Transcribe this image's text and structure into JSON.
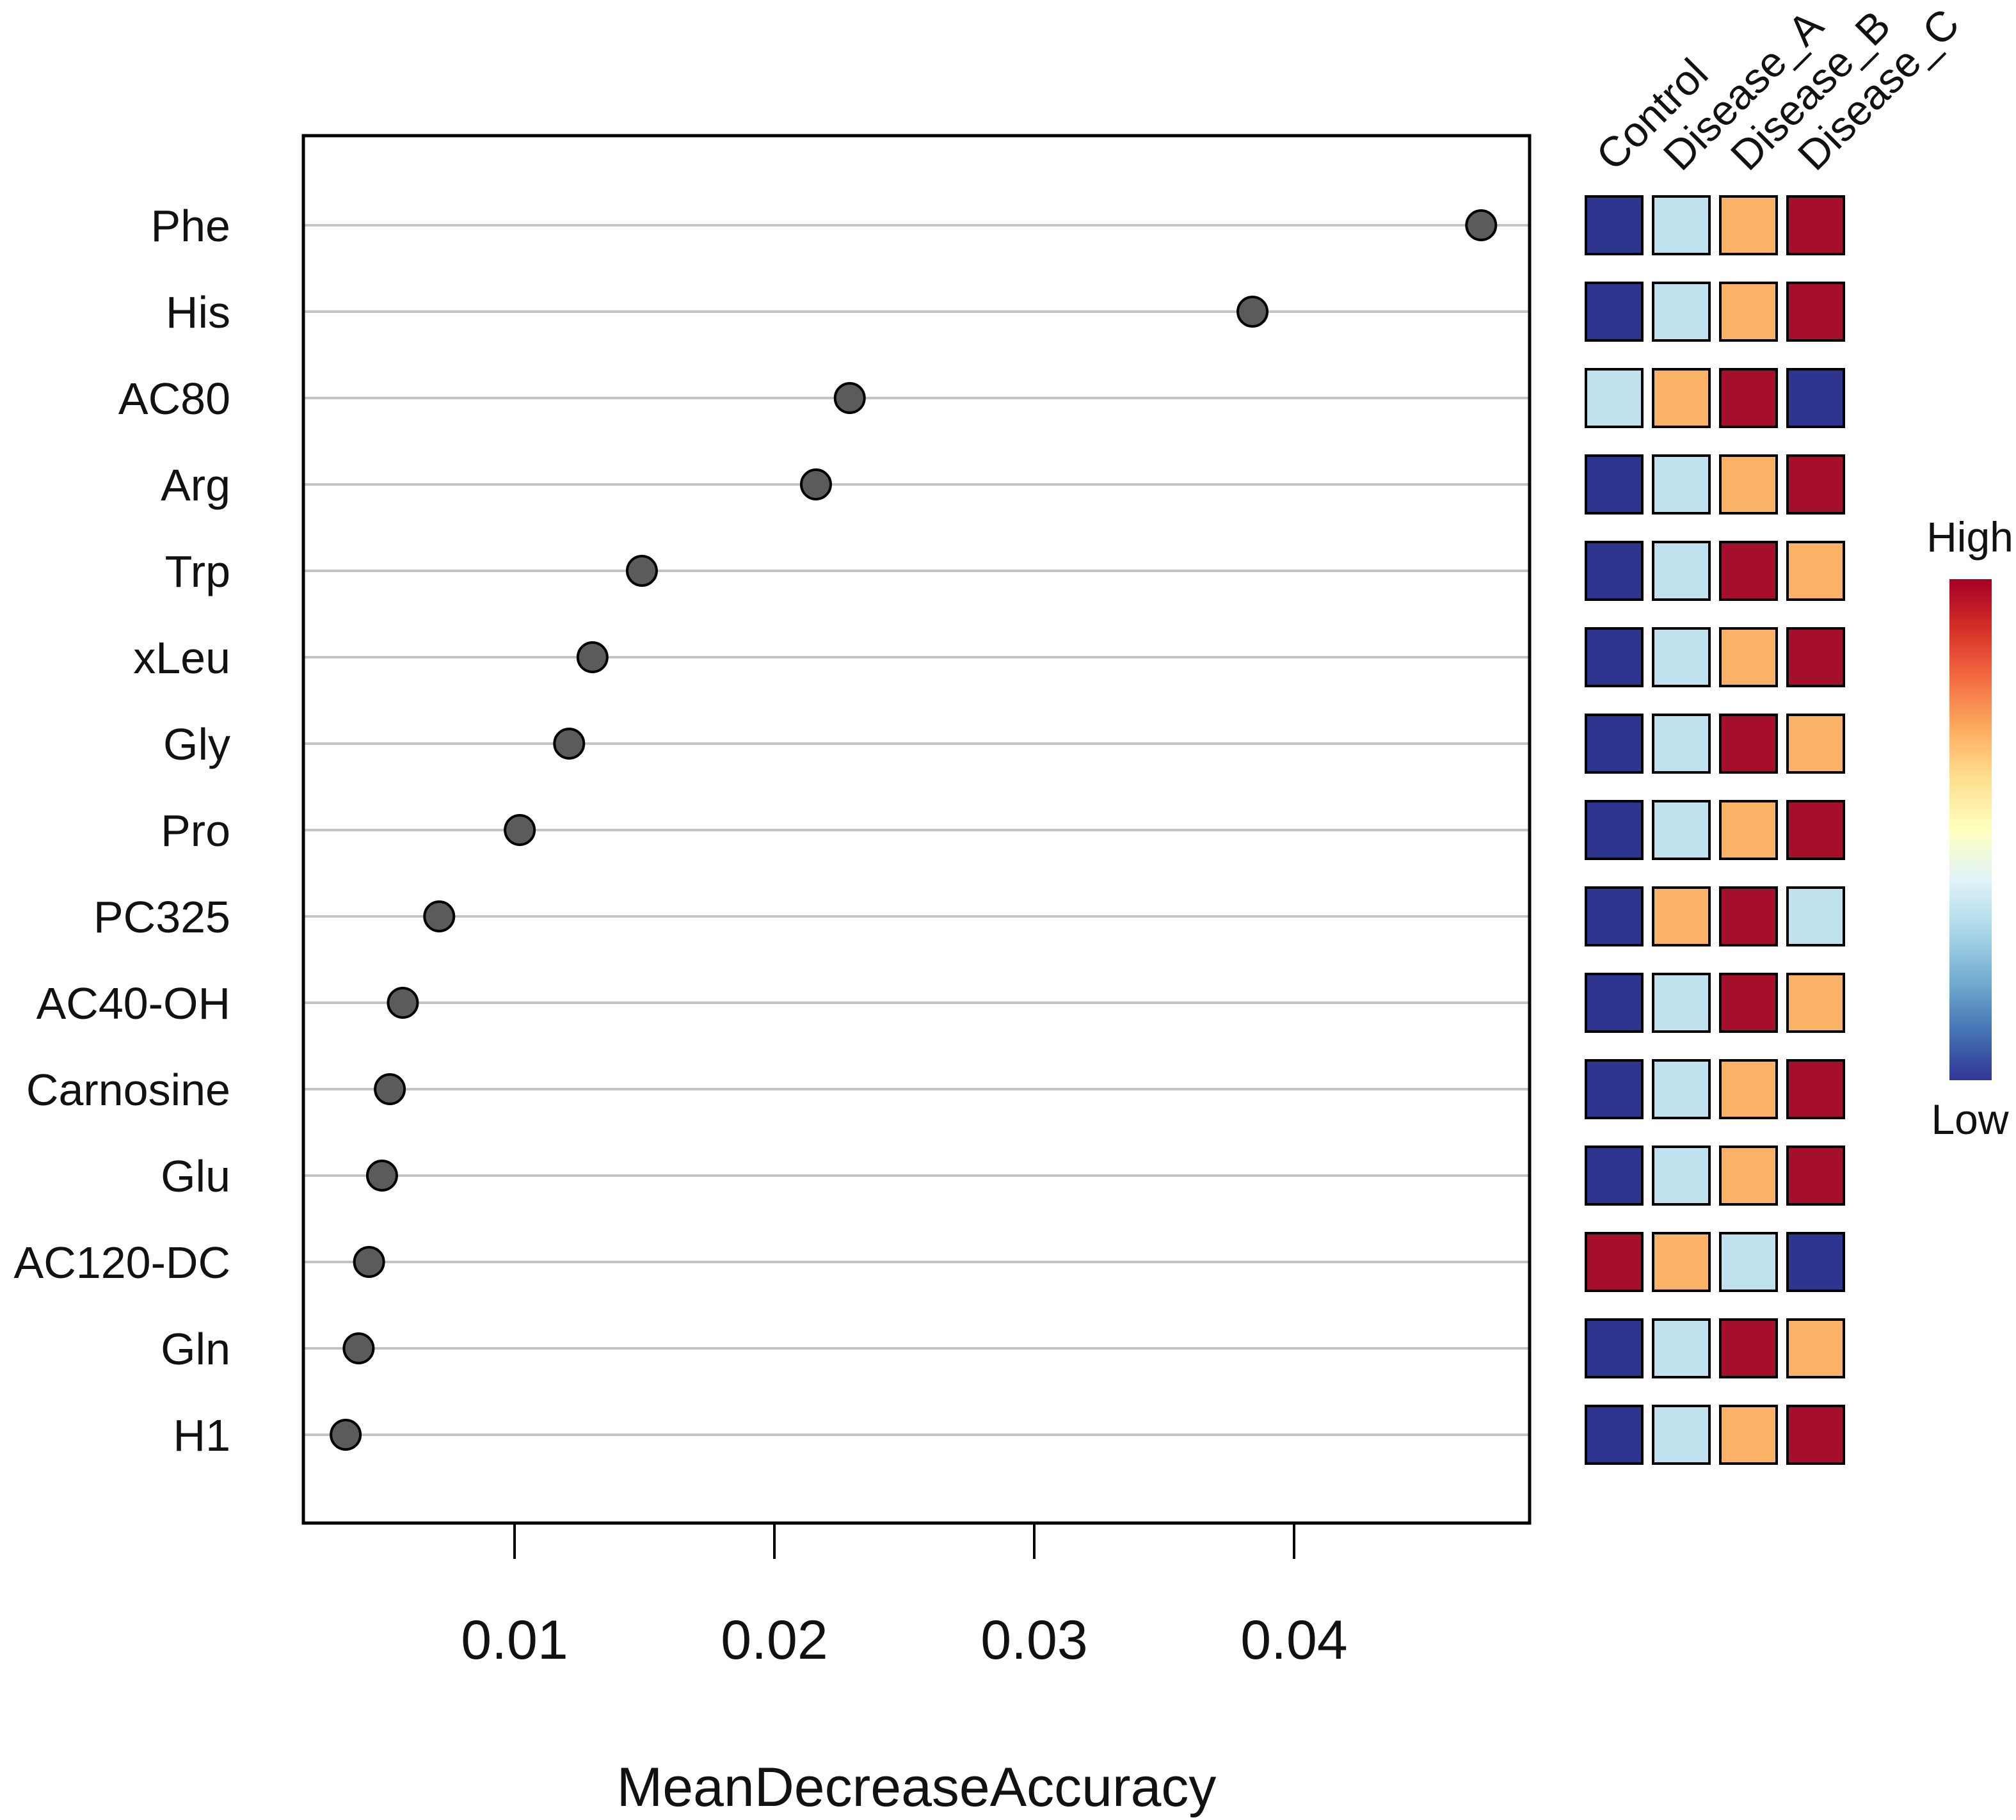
{
  "chart_data": {
    "type": "scatter",
    "subtype": "dot-plot with group heatmap",
    "xlabel": "MeanDecreaseAccuracy",
    "xlim": [
      0.002,
      0.049
    ],
    "xticks": [
      0.01,
      0.02,
      0.03,
      0.04
    ],
    "xtick_labels": [
      "0.01",
      "0.02",
      "0.03",
      "0.04"
    ],
    "grid": "horizontal",
    "features": [
      "Phe",
      "His",
      "AC80",
      "Arg",
      "Trp",
      "xLeu",
      "Gly",
      "Pro",
      "PC325",
      "AC40-OH",
      "Carnosine",
      "Glu",
      "AC120-DC",
      "Gln",
      "H1"
    ],
    "values": [
      0.0472,
      0.0384,
      0.0229,
      0.0216,
      0.0149,
      0.013,
      0.0121,
      0.0102,
      0.0071,
      0.0057,
      0.0052,
      0.0049,
      0.0044,
      0.004,
      0.0035
    ],
    "groups": [
      "Control",
      "Disease_A",
      "Disease_B",
      "Disease_C"
    ],
    "levels_note": "1 = lowest, 4 = highest relative level per feature",
    "heatmap_levels": [
      [
        1,
        2,
        3,
        4
      ],
      [
        1,
        2,
        3,
        4
      ],
      [
        2,
        3,
        4,
        1
      ],
      [
        1,
        2,
        3,
        4
      ],
      [
        1,
        2,
        4,
        3
      ],
      [
        1,
        2,
        3,
        4
      ],
      [
        1,
        2,
        4,
        3
      ],
      [
        1,
        2,
        3,
        4
      ],
      [
        1,
        3,
        4,
        2
      ],
      [
        1,
        2,
        4,
        3
      ],
      [
        1,
        2,
        3,
        4
      ],
      [
        1,
        2,
        3,
        4
      ],
      [
        4,
        3,
        2,
        1
      ],
      [
        1,
        2,
        4,
        3
      ],
      [
        1,
        2,
        3,
        4
      ]
    ],
    "level_colors": [
      "#2d3590",
      "#bfe2ee",
      "#f9b266",
      "#a50f2b"
    ],
    "point_color": "#5b5b5b",
    "legend": {
      "high_label": "High",
      "low_label": "Low",
      "gradient": [
        "#a50026",
        "#d73027",
        "#f46d43",
        "#fdae61",
        "#fee090",
        "#ffffbf",
        "#e0f3f8",
        "#abd9e9",
        "#74add1",
        "#4575b4",
        "#313695"
      ]
    }
  }
}
